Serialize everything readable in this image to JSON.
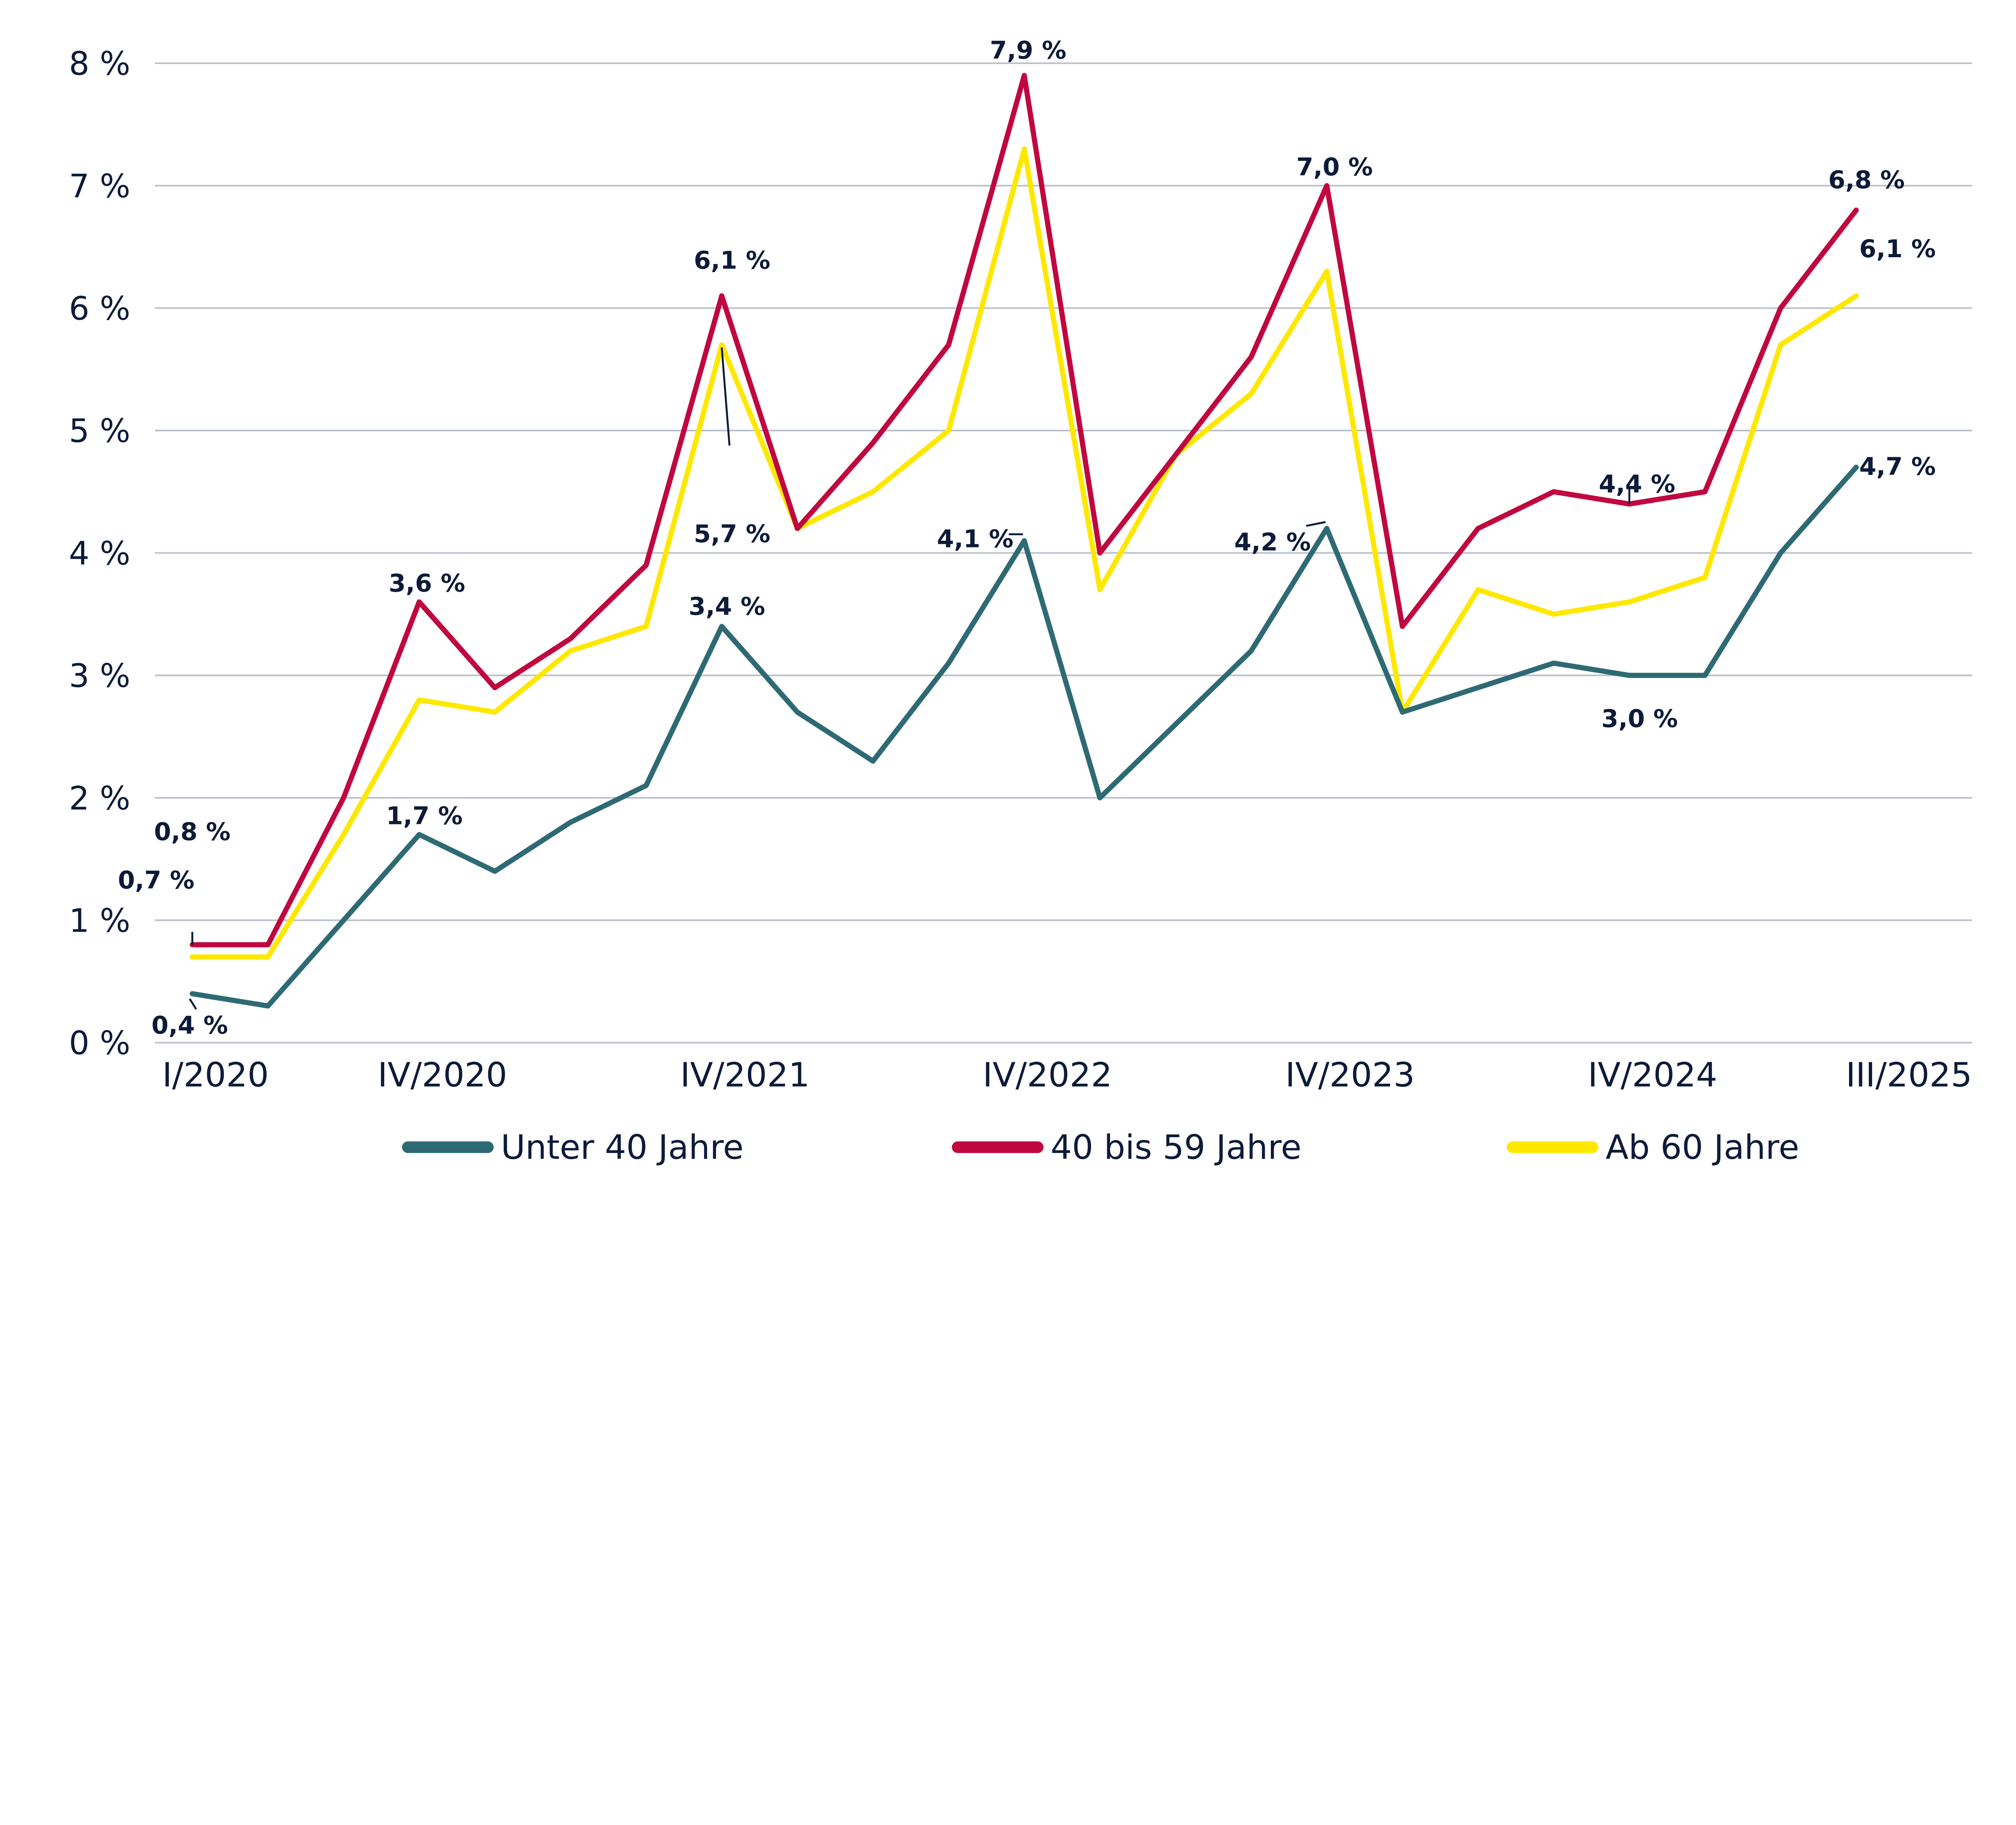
{
  "chart_data": {
    "type": "line",
    "title": "",
    "xlabel": "",
    "ylabel": "",
    "x": [
      "I/2020",
      "II/2020",
      "III/2020",
      "IV/2020",
      "I/2021",
      "II/2021",
      "III/2021",
      "IV/2021",
      "I/2022",
      "II/2022",
      "III/2022",
      "IV/2022",
      "I/2023",
      "II/2023",
      "III/2023",
      "IV/2023",
      "I/2024",
      "II/2024",
      "III/2024",
      "IV/2024",
      "I/2025",
      "II/2025",
      "III/2025"
    ],
    "x_tick_labels": [
      "I/2020",
      "IV/2020",
      "IV/2021",
      "IV/2022",
      "IV/2023",
      "IV/2024",
      "III/2025"
    ],
    "y_tick_labels": [
      "0 %",
      "1 %",
      "2 %",
      "3 %",
      "4 %",
      "5 %",
      "6 %",
      "7 %",
      "8 %"
    ],
    "ylim": [
      0,
      8
    ],
    "y_unit": "%",
    "grid": "horizontal",
    "legend_position": "bottom",
    "series": [
      {
        "name": "Unter 40 Jahre",
        "color": "#2e6a74",
        "values": [
          0.4,
          0.3,
          1.0,
          1.7,
          1.4,
          1.8,
          2.1,
          3.4,
          2.7,
          2.3,
          3.1,
          4.1,
          2.0,
          2.6,
          3.2,
          4.2,
          2.7,
          2.9,
          3.1,
          3.0,
          3.0,
          4.0,
          4.7
        ]
      },
      {
        "name": "40 bis 59 Jahre",
        "color": "#c0073f",
        "values": [
          0.8,
          0.8,
          2.0,
          3.6,
          2.9,
          3.3,
          3.9,
          6.1,
          4.2,
          4.9,
          5.7,
          7.9,
          4.0,
          4.8,
          5.6,
          7.0,
          3.4,
          4.2,
          4.5,
          4.4,
          4.5,
          6.0,
          6.8
        ]
      },
      {
        "name": "Ab 60 Jahre",
        "color": "#ffe800",
        "values": [
          0.7,
          0.7,
          1.7,
          2.8,
          2.7,
          3.2,
          3.4,
          5.7,
          4.2,
          4.5,
          5.0,
          7.3,
          3.7,
          4.8,
          5.3,
          6.3,
          2.7,
          3.7,
          3.5,
          3.6,
          3.8,
          5.7,
          6.1
        ]
      }
    ],
    "data_labels": [
      {
        "series": 1,
        "index": 0,
        "text": "0,8 %"
      },
      {
        "series": 2,
        "index": 0,
        "text": "0,7 %"
      },
      {
        "series": 0,
        "index": 0,
        "text": "0,4 %"
      },
      {
        "series": 1,
        "index": 3,
        "text": "3,6 %"
      },
      {
        "series": 0,
        "index": 3,
        "text": "1,7 %"
      },
      {
        "series": 1,
        "index": 7,
        "text": "6,1 %"
      },
      {
        "series": 2,
        "index": 7,
        "text": "5,7 %"
      },
      {
        "series": 0,
        "index": 7,
        "text": "3,4 %"
      },
      {
        "series": 0,
        "index": 11,
        "text": "4,1 %"
      },
      {
        "series": 1,
        "index": 11,
        "text": "7,9 %"
      },
      {
        "series": 1,
        "index": 15,
        "text": "7,0 %"
      },
      {
        "series": 0,
        "index": 15,
        "text": "4,2 %"
      },
      {
        "series": 1,
        "index": 19,
        "text": "4,4 %"
      },
      {
        "series": 0,
        "index": 19,
        "text": "3,0 %"
      },
      {
        "series": 1,
        "index": 22,
        "text": "6,8 %"
      },
      {
        "series": 2,
        "index": 22,
        "text": "6,1 %"
      },
      {
        "series": 0,
        "index": 22,
        "text": "4,7 %"
      }
    ],
    "colors": {
      "text": "#0d1b3a",
      "grid": "#b9bec8"
    }
  }
}
